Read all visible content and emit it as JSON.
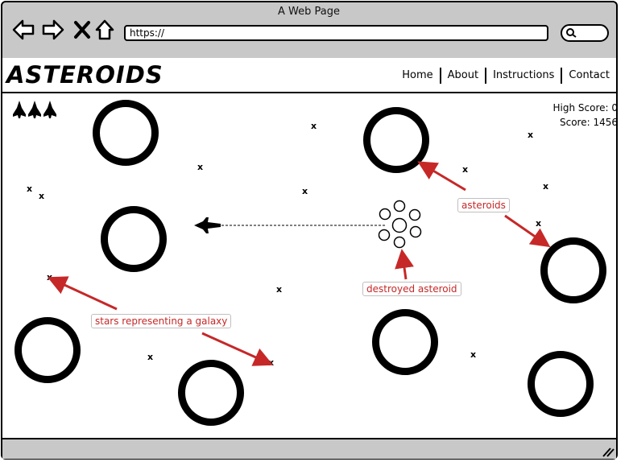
{
  "window": {
    "title": "A Web Page"
  },
  "browser": {
    "url": "https://"
  },
  "header": {
    "logo": "ASTEROIDS",
    "menu": [
      "Home",
      "About",
      "Instructions",
      "Contact"
    ]
  },
  "game": {
    "lives": 3,
    "high_score_text": "High Score: 0",
    "score_text": "Score: 1456",
    "star_glyph": "x"
  },
  "annotations": {
    "asteroids": "asteroids",
    "destroyed": "destroyed asteroid",
    "stars": "stars representing a galaxy"
  },
  "colors": {
    "annotation": "#c62828",
    "chrome": "#c8c8c8"
  },
  "icons": [
    "back-arrow-icon",
    "forward-arrow-icon",
    "close-icon",
    "home-icon",
    "search-icon",
    "ship-icon",
    "resize-grip-icon"
  ]
}
